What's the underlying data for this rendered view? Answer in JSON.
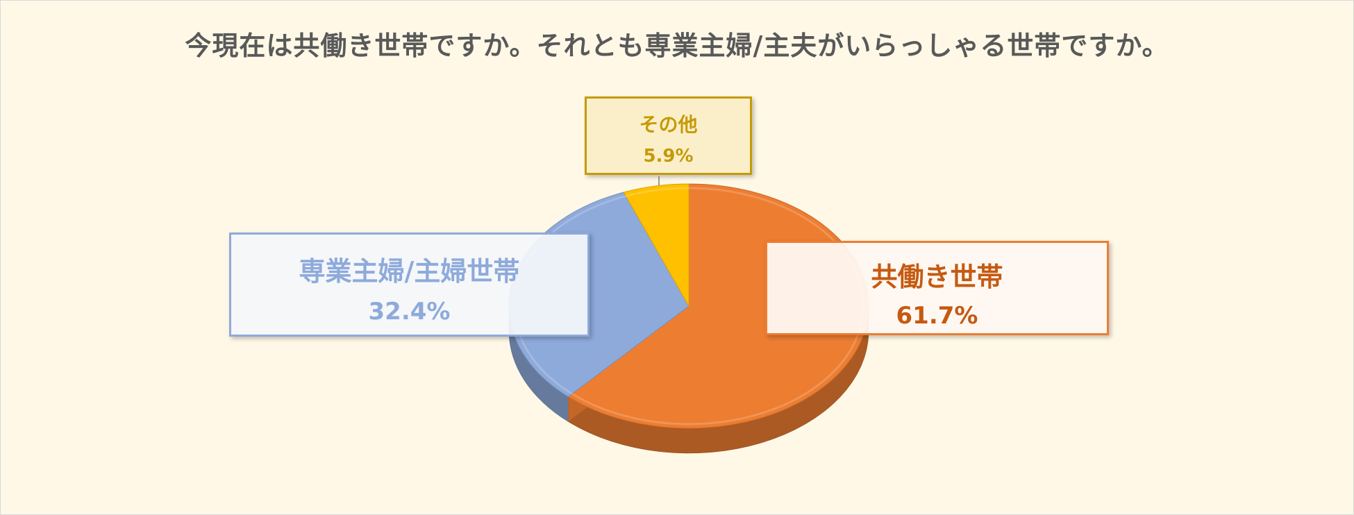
{
  "chart_data": {
    "type": "pie",
    "title": "今現在は共働き世帯ですか。それとも専業主婦/主夫がいらっしゃる世帯ですか。",
    "slices": [
      {
        "label": "共働き世帯",
        "value": 61.7,
        "value_label": "61.7%",
        "color": "#ed7d31"
      },
      {
        "label": "専業主婦/主婦世帯",
        "value": 32.4,
        "value_label": "32.4%",
        "color": "#8eaadb"
      },
      {
        "label": "その他",
        "value": 5.9,
        "value_label": "5.9%",
        "color": "#ffc000"
      }
    ],
    "style": "3d",
    "legend": "none"
  },
  "colors": {
    "background": "#fff8e7",
    "title": "#595959"
  }
}
